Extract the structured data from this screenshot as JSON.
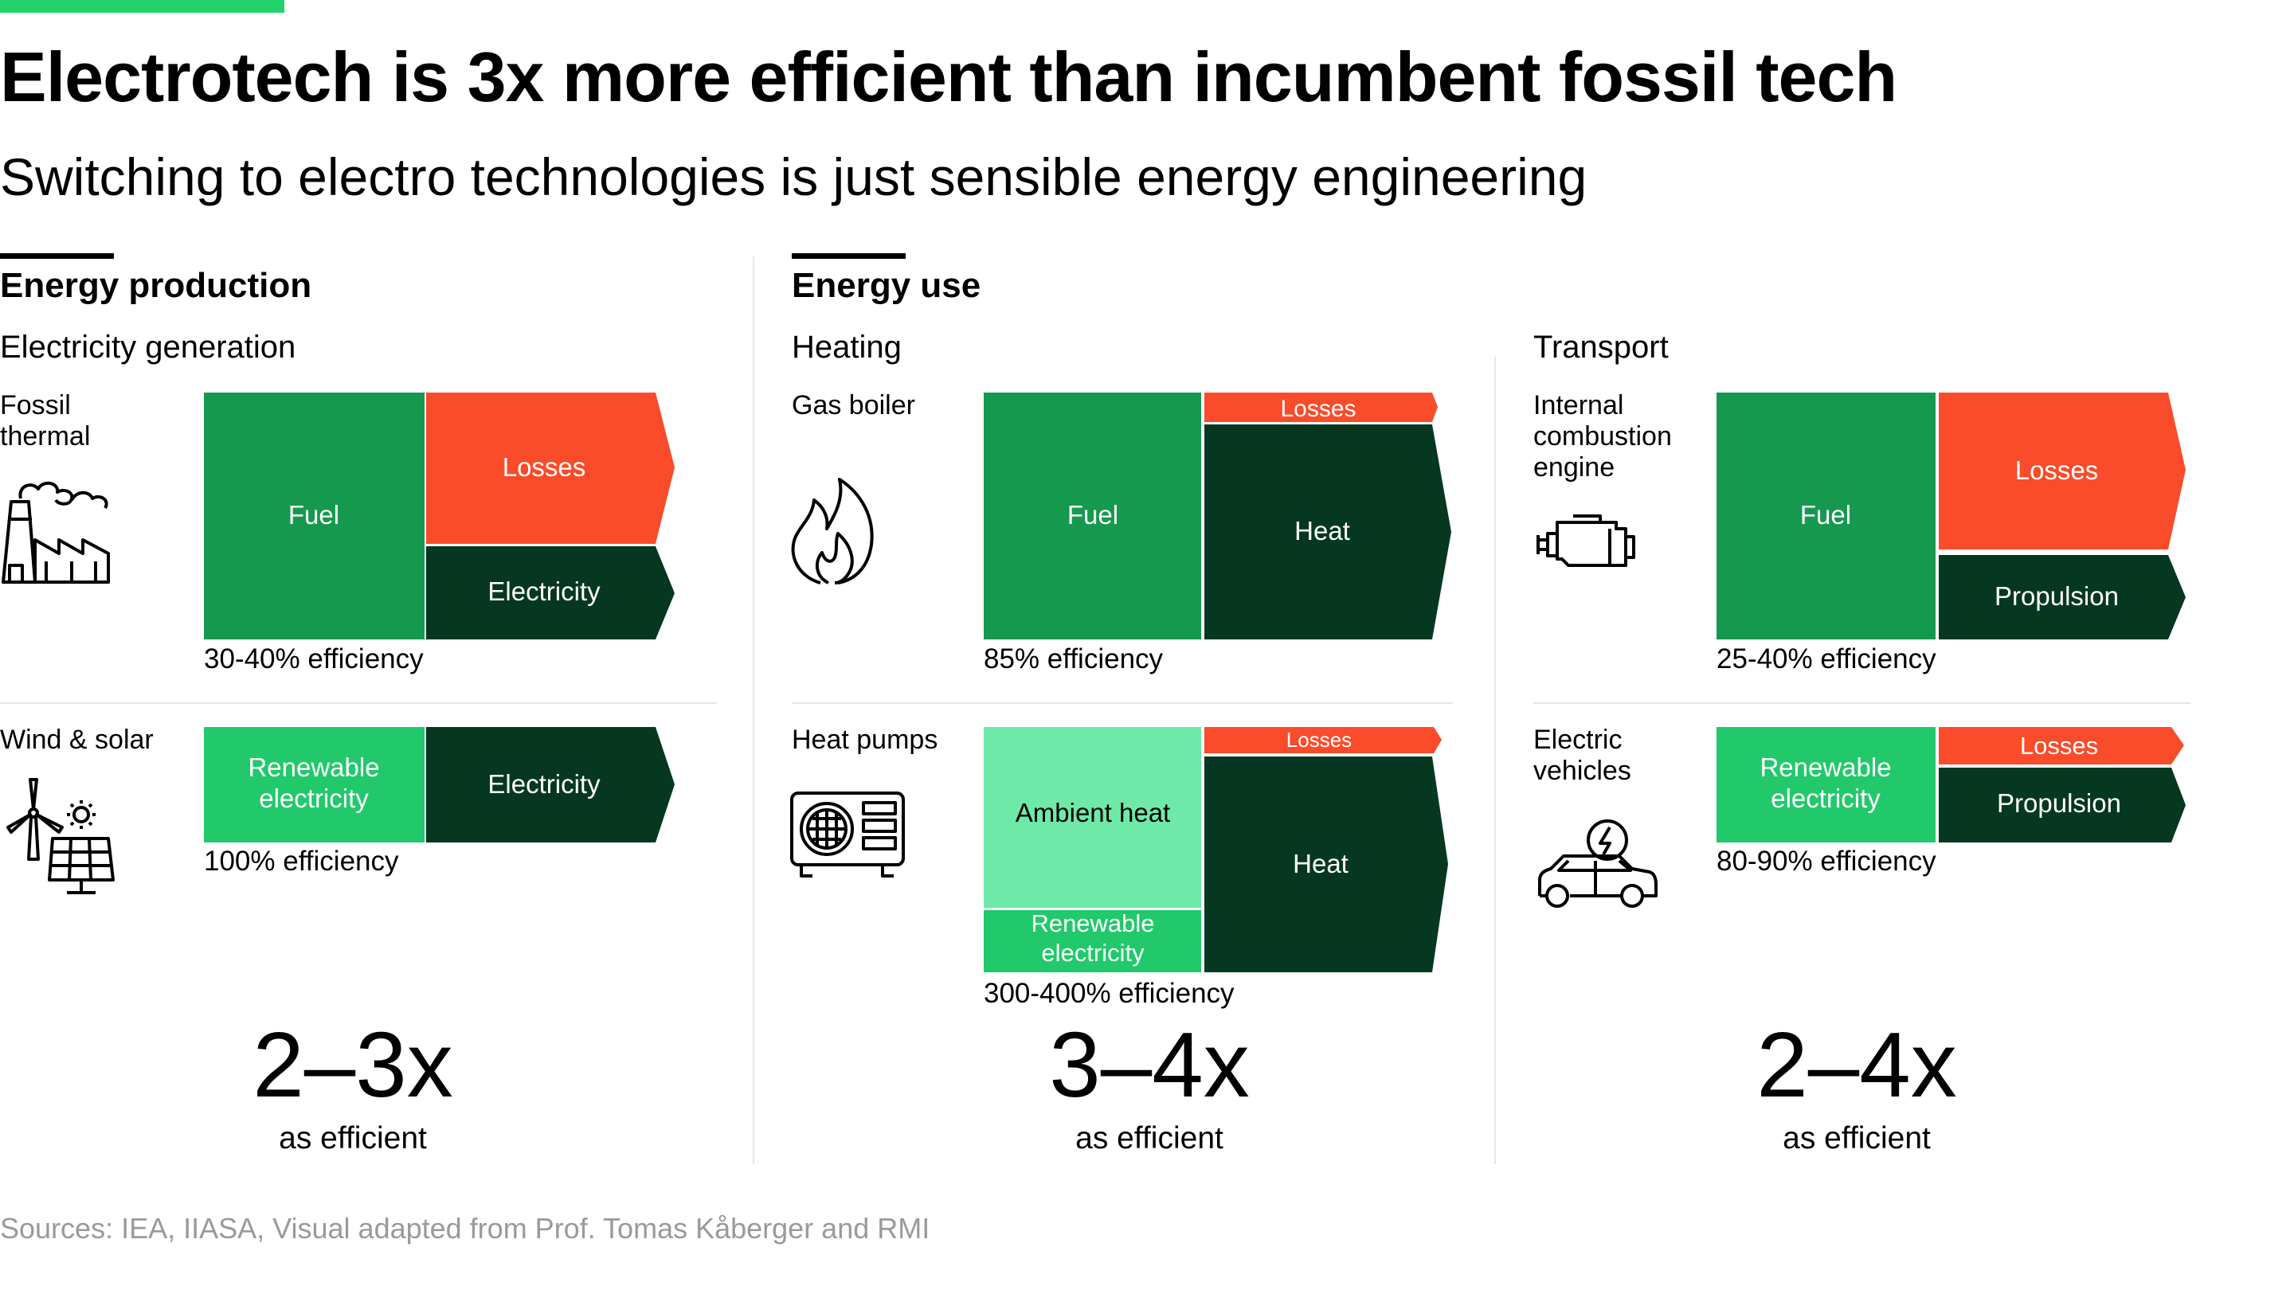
{
  "colors": {
    "accent_green": "#22d36b",
    "fuel_green": "#15994f",
    "renewable_green": "#21c96b",
    "ambient_green": "#6ee9a8",
    "losses_red": "#fa4b2a",
    "dark_green": "#063821"
  },
  "title": "Electrotech is 3x more efficient than incumbent fossil tech",
  "subtitle": "Switching to electro technologies is just sensible energy engineering",
  "production": {
    "heading": "Energy production",
    "subheading": "Electricity generation",
    "fossil": {
      "label": "Fossil thermal",
      "icon": "factory-icon",
      "blocks": {
        "input": "Fuel",
        "loss": "Losses",
        "output": "Electricity"
      },
      "efficiency": "30-40% efficiency"
    },
    "renewable": {
      "label": "Wind & solar",
      "icon": "wind-solar-icon",
      "blocks": {
        "input": "Renewable electricity",
        "output": "Electricity"
      },
      "efficiency": "100% efficiency"
    },
    "multiplier": "2–3x",
    "multiplier_caption": "as efficient"
  },
  "use": {
    "heading": "Energy use",
    "heating": {
      "heading": "Heating",
      "fossil": {
        "label": "Gas boiler",
        "icon": "flame-icon",
        "blocks": {
          "input": "Fuel",
          "loss": "Losses",
          "output": "Heat"
        },
        "efficiency": "85% efficiency"
      },
      "electro": {
        "label": "Heat pumps",
        "icon": "heat-pump-icon",
        "blocks": {
          "input_top": "Ambient heat",
          "input_bottom": "Renewable electricity",
          "loss": "Losses",
          "output": "Heat"
        },
        "efficiency": "300-400% efficiency"
      },
      "multiplier": "3–4x",
      "multiplier_caption": "as efficient"
    },
    "transport": {
      "heading": "Transport",
      "fossil": {
        "label": "Internal combustion engine",
        "icon": "engine-icon",
        "blocks": {
          "input": "Fuel",
          "loss": "Losses",
          "output": "Propulsion"
        },
        "efficiency": "25-40% efficiency"
      },
      "electro": {
        "label": "Electric vehicles",
        "icon": "electric-car-icon",
        "blocks": {
          "input": "Renewable electricity",
          "loss": "Losses",
          "output": "Propulsion"
        },
        "efficiency": "80-90% efficiency"
      },
      "multiplier": "2–4x",
      "multiplier_caption": "as efficient"
    }
  },
  "source": "Sources: IEA, IIASA, Visual adapted from Prof. Tomas Kåberger and RMI"
}
